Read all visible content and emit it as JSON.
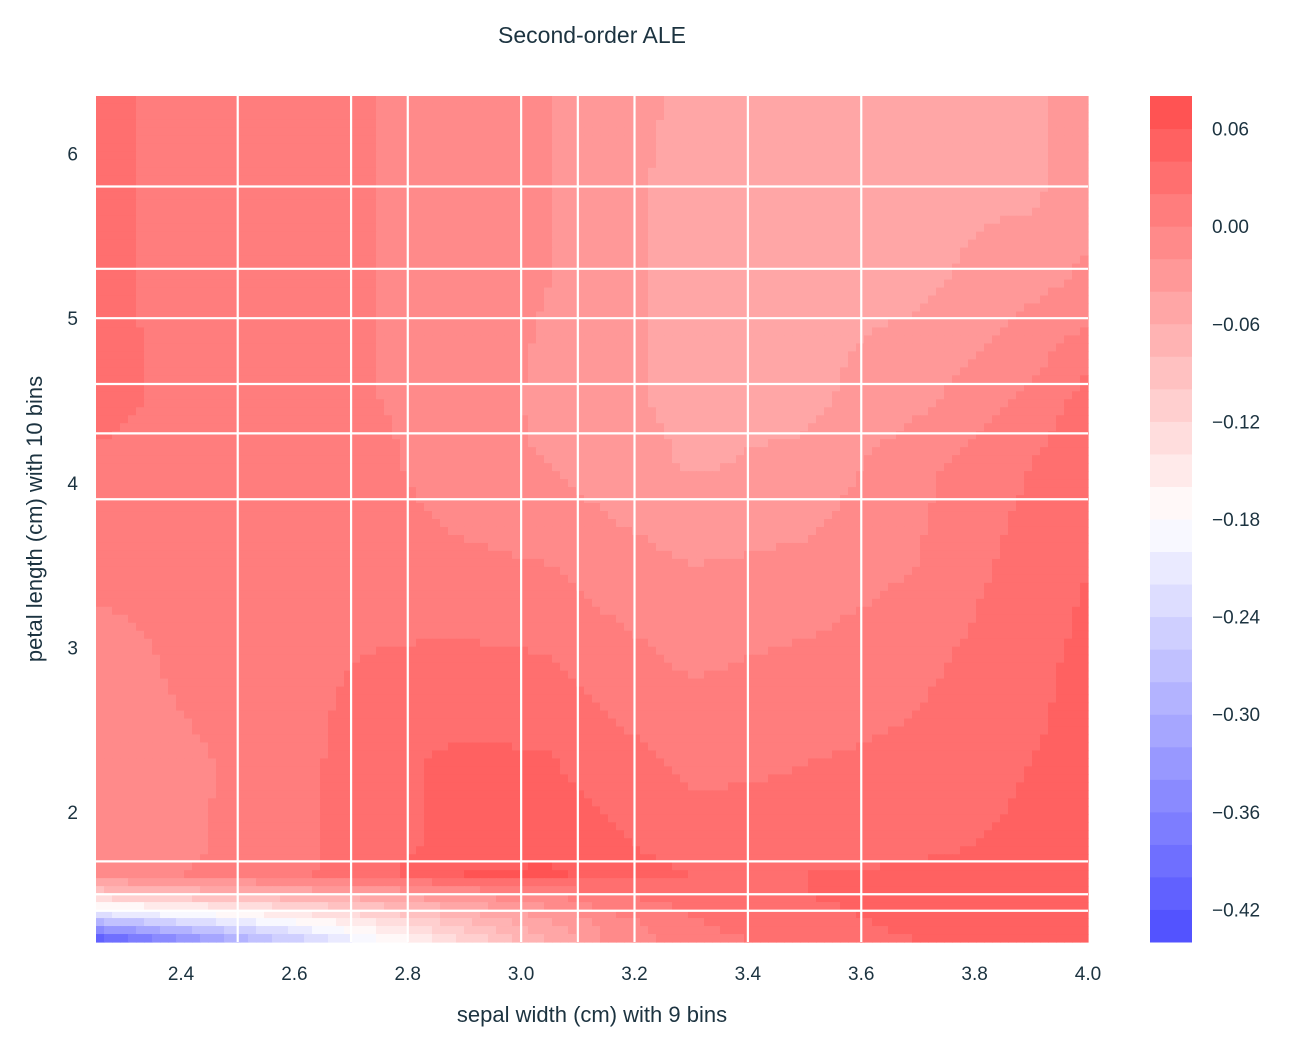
{
  "chart_data": {
    "type": "heatmap",
    "subtype": "filled-contour",
    "title": "Second-order ALE",
    "xlabel": "sepal width (cm) with 9 bins",
    "ylabel": "petal length (cm) with 10 bins",
    "xlim": [
      2.25,
      4.0
    ],
    "ylim": [
      1.21,
      6.35
    ],
    "xticks": [
      2.4,
      2.6,
      2.8,
      3.0,
      3.2,
      3.4,
      3.6,
      3.8,
      4.0
    ],
    "xtick_labels": [
      "2.4",
      "2.6",
      "2.8",
      "3.0",
      "3.2",
      "3.4",
      "3.6",
      "3.8",
      "4.0"
    ],
    "yticks": [
      2,
      3,
      4,
      5,
      6
    ],
    "ytick_labels": [
      "2",
      "3",
      "4",
      "5",
      "6"
    ],
    "x_bin_edges": [
      2.5,
      2.7,
      2.8,
      3.0,
      3.1,
      3.2,
      3.4,
      3.6
    ],
    "y_bin_edges": [
      1.4,
      1.5,
      1.7,
      3.9,
      4.3,
      4.6,
      5.0,
      5.3,
      5.8
    ],
    "grid": true,
    "colormap": "bwr",
    "level_min": -0.44,
    "level_max": 0.08,
    "level_step": 0.02,
    "x": [
      2.25,
      2.4,
      2.6,
      2.75,
      2.9,
      3.05,
      3.15,
      3.3,
      3.5,
      3.7,
      3.9,
      4.0
    ],
    "y": [
      1.21,
      1.35,
      1.5,
      1.62,
      1.8,
      2.3,
      2.9,
      3.5,
      4.1,
      4.5,
      5.2,
      5.8,
      6.35
    ],
    "z": [
      [
        -0.44,
        -0.36,
        -0.26,
        -0.19,
        -0.12,
        -0.06,
        -0.02,
        0.01,
        0.03,
        0.04,
        0.05,
        0.05
      ],
      [
        -0.26,
        -0.22,
        -0.17,
        -0.13,
        -0.08,
        -0.04,
        -0.01,
        0.02,
        0.035,
        0.045,
        0.05,
        0.05
      ],
      [
        -0.1,
        -0.08,
        -0.06,
        -0.04,
        -0.02,
        0.0,
        0.02,
        0.03,
        0.04,
        0.045,
        0.05,
        0.05
      ],
      [
        -0.01,
        0.0,
        0.015,
        0.035,
        0.06,
        0.065,
        0.05,
        0.04,
        0.04,
        0.045,
        0.05,
        0.05
      ],
      [
        -0.01,
        -0.005,
        0.015,
        0.03,
        0.05,
        0.05,
        0.045,
        0.03,
        0.025,
        0.035,
        0.045,
        0.05
      ],
      [
        -0.01,
        -0.005,
        0.012,
        0.035,
        0.045,
        0.042,
        0.03,
        0.015,
        0.02,
        0.025,
        0.04,
        0.045
      ],
      [
        -0.015,
        0.005,
        0.015,
        0.022,
        0.025,
        0.022,
        0.01,
        -0.003,
        0.005,
        0.015,
        0.035,
        0.045
      ],
      [
        0.01,
        0.01,
        0.01,
        0.01,
        0.005,
        0.0,
        -0.01,
        -0.02,
        -0.015,
        0.0,
        0.03,
        0.04
      ],
      [
        0.015,
        0.012,
        0.01,
        0.005,
        -0.015,
        -0.02,
        -0.03,
        -0.042,
        -0.035,
        -0.005,
        0.02,
        0.04
      ],
      [
        0.03,
        0.012,
        0.01,
        0.0,
        -0.01,
        -0.025,
        -0.035,
        -0.045,
        -0.045,
        -0.025,
        0.005,
        0.03
      ],
      [
        0.03,
        0.01,
        0.01,
        0.0,
        -0.01,
        -0.02,
        -0.035,
        -0.045,
        -0.045,
        -0.045,
        -0.025,
        -0.015
      ],
      [
        0.03,
        0.01,
        0.01,
        0.0,
        -0.01,
        -0.02,
        -0.035,
        -0.045,
        -0.045,
        -0.045,
        -0.045,
        -0.03
      ],
      [
        0.03,
        0.01,
        0.01,
        0.0,
        -0.01,
        -0.02,
        -0.03,
        -0.045,
        -0.045,
        -0.045,
        -0.045,
        -0.03
      ]
    ],
    "colorbar": {
      "ticks": [
        0.06,
        0.0,
        -0.06,
        -0.12,
        -0.18,
        -0.24,
        -0.3,
        -0.36,
        -0.42
      ],
      "tick_labels": [
        "0.06",
        "0.00",
        "−0.06",
        "−0.12",
        "−0.18",
        "−0.24",
        "−0.30",
        "−0.36",
        "−0.42"
      ]
    }
  }
}
